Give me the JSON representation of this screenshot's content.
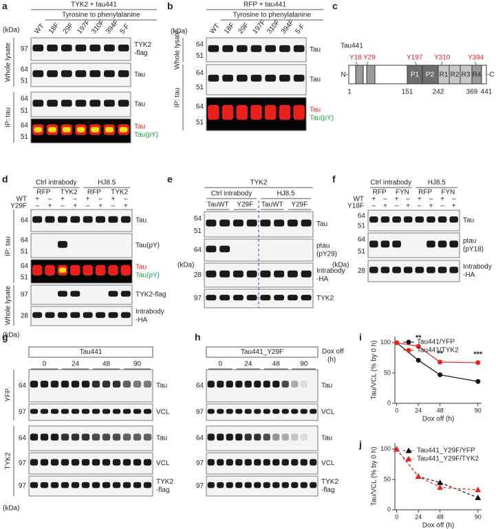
{
  "panels": {
    "a": {
      "label": "a",
      "title": "TYK2 + tau441",
      "subtitle": "Tyrosine to phenylalanine",
      "kda": "(kDa)",
      "lanes": [
        "WT",
        "18F",
        "29F",
        "197F",
        "310F",
        "394F",
        "5-F"
      ],
      "side_labels": [
        "Whole lysate",
        "IP: tau"
      ],
      "rows": [
        {
          "markers": [
            "97"
          ],
          "labels": [
            "TYK2",
            "-flag"
          ]
        },
        {
          "markers": [
            "64",
            "51"
          ],
          "labels": [
            "Tau"
          ]
        },
        {
          "markers": [
            "64",
            "51"
          ],
          "labels": [
            "Tau"
          ]
        },
        {
          "markers": [
            "64",
            "51"
          ],
          "labels": [
            "Tau",
            "Tau(pY)"
          ],
          "fluorescent": true
        }
      ]
    },
    "b": {
      "label": "b",
      "title": "RFP + tau441",
      "subtitle": "Tyrosine to phenylalanine",
      "kda": "(kDa)",
      "lanes": [
        "WT",
        "18F",
        "29F",
        "197F",
        "310F",
        "394F",
        "5-F"
      ],
      "side_labels": [
        "Whole lysate",
        "IP: tau"
      ],
      "rows": [
        {
          "markers": [
            "64",
            "51"
          ],
          "labels": [
            "Tau"
          ]
        },
        {
          "markers": [
            "64",
            "51"
          ],
          "labels": [
            "Tau"
          ]
        },
        {
          "markers": [
            "64",
            "51"
          ],
          "labels": [
            "Tau",
            "Tau(pY)"
          ],
          "fluorescent": true
        }
      ]
    },
    "c": {
      "label": "c",
      "protein": "Tau441",
      "sites": [
        "Y18",
        "Y29",
        "Y197",
        "Y310",
        "Y394"
      ],
      "domains": [
        "P1",
        "P2",
        "R1",
        "R2",
        "R3",
        "R4"
      ],
      "ends": [
        "N-",
        "-C"
      ],
      "positions": [
        "1",
        "151",
        "242",
        "369",
        "441"
      ]
    },
    "d": {
      "label": "d",
      "groups": [
        "Ctrl intrabody",
        "HJ8.5"
      ],
      "subgroups": [
        "RFP",
        "TYK2",
        "RFP",
        "TYK2"
      ],
      "genotypes": [
        {
          "name": "WT",
          "signs": [
            "+",
            "–",
            "+",
            "–",
            "+",
            "–",
            "+",
            "–"
          ]
        },
        {
          "name": "Y29F",
          "signs": [
            "–",
            "+",
            "–",
            "+",
            "–",
            "+",
            "–",
            "+"
          ]
        }
      ],
      "side_labels": [
        "IP: tau",
        "Whole lysate"
      ],
      "kda": "(kDa)",
      "rows": [
        {
          "markers": [
            "64"
          ],
          "labels": [
            "Tau"
          ]
        },
        {
          "markers": [
            "64",
            "51"
          ],
          "labels": [
            "Tau(pY)"
          ]
        },
        {
          "markers": [
            "64",
            "51"
          ],
          "labels": [
            "Tau",
            "Tau(pY)"
          ],
          "fluorescent": true
        },
        {
          "markers": [
            "97"
          ],
          "labels": [
            "TYK2-flag"
          ]
        },
        {
          "markers": [
            "28"
          ],
          "labels": [
            "Intrabody",
            "-HA"
          ]
        }
      ]
    },
    "e": {
      "label": "e",
      "title": "TYK2",
      "groups": [
        "Ctrl intrabody",
        "HJ8.5"
      ],
      "subgroups": [
        "TauWT",
        "Y29F",
        "TauWT",
        "Y29F"
      ],
      "kda": "(kDa)",
      "rows": [
        {
          "markers": [
            "64",
            "51"
          ],
          "labels": [
            "Tau"
          ]
        },
        {
          "markers": [
            "64"
          ],
          "labels": [
            "ptau",
            "(pY29)"
          ]
        },
        {
          "markers": [
            "28"
          ],
          "labels": [
            "Intrabody",
            "-HA"
          ]
        },
        {
          "markers": [
            "97"
          ],
          "labels": [
            "TYK2"
          ]
        }
      ]
    },
    "f": {
      "label": "f",
      "groups": [
        "Ctrl intrabody",
        "HJ8.5"
      ],
      "subgroups": [
        "RFP",
        "FYN",
        "RFP",
        "FYN"
      ],
      "genotypes": [
        {
          "name": "WT",
          "signs": [
            "+",
            "–",
            "+",
            "–",
            "+",
            "–",
            "+",
            "–"
          ]
        },
        {
          "name": "Y18F",
          "signs": [
            "–",
            "+",
            "–",
            "+",
            "–",
            "+",
            "–",
            "+"
          ]
        }
      ],
      "kda": "(kDa)",
      "rows": [
        {
          "markers": [
            "64",
            "51"
          ],
          "labels": [
            "Tau"
          ]
        },
        {
          "markers": [
            "64",
            "51"
          ],
          "labels": [
            "ptau",
            "(pY18)"
          ]
        },
        {
          "markers": [
            "28"
          ],
          "labels": [
            "Intrabody",
            "-HA"
          ]
        }
      ]
    },
    "g": {
      "label": "g",
      "title": "Tau441",
      "subgroups": [
        "0",
        "24",
        "48",
        "90"
      ],
      "side_labels": [
        "YFP",
        "TYK2"
      ],
      "kda": "(kDa)",
      "rows": [
        {
          "markers": [
            "64"
          ],
          "labels": [
            "Tau"
          ]
        },
        {
          "markers": [
            "97"
          ],
          "labels": [
            "VCL"
          ]
        },
        {
          "markers": [
            "64"
          ],
          "labels": [
            "Tau"
          ]
        },
        {
          "markers": [
            "97"
          ],
          "labels": [
            "VCL"
          ]
        },
        {
          "markers": [
            "97"
          ],
          "labels": [
            "TYK2",
            "-flag"
          ]
        }
      ]
    },
    "h": {
      "label": "h",
      "title": "Tau441_Y29F",
      "subgroups": [
        "0",
        "24",
        "48",
        "90"
      ],
      "note": [
        "Dox off",
        "(h)"
      ],
      "rows": [
        {
          "markers": [
            "64"
          ],
          "labels": [
            "Tau"
          ]
        },
        {
          "markers": [
            "97"
          ],
          "labels": [
            "VCL"
          ]
        },
        {
          "markers": [
            "64"
          ],
          "labels": [
            "Tau"
          ]
        },
        {
          "markers": [
            "97"
          ],
          "labels": [
            "VCL"
          ]
        },
        {
          "markers": [
            "97"
          ],
          "labels": [
            "TYK2",
            "-flag"
          ]
        }
      ]
    }
  },
  "chart_data": [
    {
      "type": "line",
      "label": "i",
      "ylabel": "Tau/VCL (% by 0 h)",
      "xlabel": "Dox off (h)",
      "x": [
        0,
        24,
        48,
        90
      ],
      "xlim": [
        -2,
        94
      ],
      "ylim": [
        0,
        110
      ],
      "xticks": [
        0,
        24,
        48,
        90
      ],
      "yticks": [
        0,
        50,
        100
      ],
      "series": [
        {
          "name": "Tau441/YFP",
          "color": "#111111",
          "marker": "circle",
          "dashed": false,
          "values": [
            100,
            71,
            47,
            36
          ]
        },
        {
          "name": "Tau441/TYK2",
          "color": "#e8211c",
          "marker": "circle",
          "dashed": false,
          "values": [
            100,
            94,
            68,
            67
          ]
        }
      ],
      "annotations": [
        {
          "text": "**",
          "x": 24
        },
        {
          "text": "**",
          "x": 48
        },
        {
          "text": "***",
          "x": 90
        }
      ]
    },
    {
      "type": "line",
      "label": "j",
      "ylabel": "Tau/VCL (% by 0 h)",
      "xlabel": "Dox off (h)",
      "x": [
        0,
        24,
        48,
        90
      ],
      "xlim": [
        -2,
        94
      ],
      "ylim": [
        0,
        110
      ],
      "xticks": [
        0,
        24,
        48,
        90
      ],
      "yticks": [
        0,
        50,
        100
      ],
      "series": [
        {
          "name": "Tau441_Y29F/YFP",
          "color": "#111111",
          "marker": "triangle",
          "dashed": true,
          "values": [
            100,
            55,
            45,
            20
          ]
        },
        {
          "name": "Tau441_Y29F/TYK2",
          "color": "#e8211c",
          "marker": "triangle",
          "dashed": true,
          "values": [
            100,
            55,
            37,
            33
          ]
        }
      ]
    }
  ]
}
